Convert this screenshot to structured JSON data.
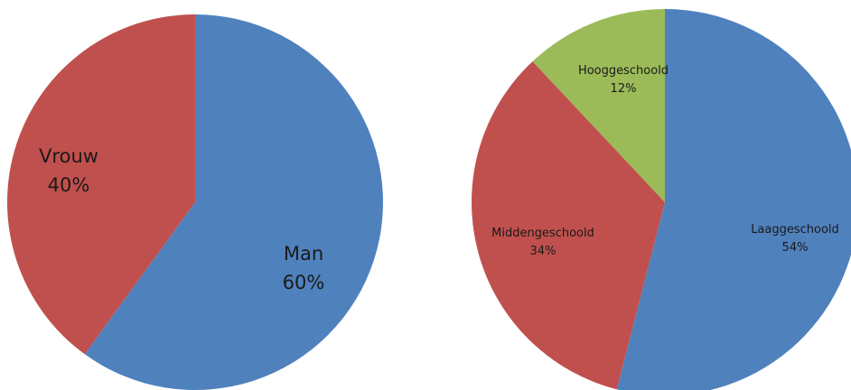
{
  "chart_data": [
    {
      "type": "pie",
      "title": "",
      "start_angle_deg": 0,
      "direction": "clockwise",
      "legend": "none",
      "slices": [
        {
          "label": "Man",
          "value": 60,
          "value_label": "60%",
          "color": "#4f81bd"
        },
        {
          "label": "Vrouw",
          "value": 40,
          "value_label": "40%",
          "color": "#c0504d"
        }
      ]
    },
    {
      "type": "pie",
      "title": "",
      "start_angle_deg": 0,
      "direction": "clockwise",
      "legend": "none",
      "slices": [
        {
          "label": "Laaggeschoold",
          "value": 54,
          "value_label": "54%",
          "color": "#4f81bd"
        },
        {
          "label": "Middengeschoold",
          "value": 34,
          "value_label": "34%",
          "color": "#c0504d"
        },
        {
          "label": "Hooggeschoold",
          "value": 12,
          "value_label": "12%",
          "color": "#9bbb59"
        }
      ]
    }
  ]
}
